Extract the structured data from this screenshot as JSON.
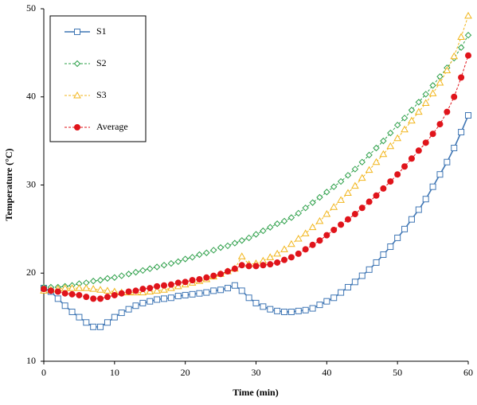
{
  "chart_data": {
    "type": "line",
    "x_label": "Time (min)",
    "y_label": "Temperature  (°C)",
    "x": [
      0,
      1,
      2,
      3,
      4,
      5,
      6,
      7,
      8,
      9,
      10,
      11,
      12,
      13,
      14,
      15,
      16,
      17,
      18,
      19,
      20,
      21,
      22,
      23,
      24,
      25,
      26,
      27,
      28,
      29,
      30,
      31,
      32,
      33,
      34,
      35,
      36,
      37,
      38,
      39,
      40,
      41,
      42,
      43,
      44,
      45,
      46,
      47,
      48,
      49,
      50,
      51,
      52,
      53,
      54,
      55,
      56,
      57,
      58,
      59,
      60
    ],
    "xlim": [
      0,
      60
    ],
    "xticks": [
      0,
      10,
      20,
      30,
      40,
      50,
      60
    ],
    "ylim": [
      10,
      50
    ],
    "yticks": [
      10,
      20,
      30,
      40,
      50
    ],
    "legend": "upper left",
    "series": [
      {
        "name": "S1",
        "color": "#3f76b4",
        "marker": "square",
        "dashed": false,
        "values": [
          18.3,
          17.9,
          17.1,
          16.3,
          15.6,
          15.0,
          14.4,
          13.9,
          13.9,
          14.4,
          15.0,
          15.5,
          15.9,
          16.3,
          16.6,
          16.8,
          17.0,
          17.1,
          17.2,
          17.4,
          17.5,
          17.6,
          17.7,
          17.8,
          18.0,
          18.1,
          18.3,
          18.6,
          18.0,
          17.2,
          16.6,
          16.2,
          15.9,
          15.7,
          15.6,
          15.6,
          15.7,
          15.8,
          16.0,
          16.4,
          16.8,
          17.2,
          17.8,
          18.4,
          19.0,
          19.7,
          20.4,
          21.2,
          22.1,
          23.0,
          24.0,
          25.0,
          26.1,
          27.2,
          28.4,
          29.8,
          31.2,
          32.6,
          34.2,
          36.0,
          37.9
        ]
      },
      {
        "name": "S2",
        "color": "#2ea04a",
        "marker": "diamond",
        "dashed": true,
        "values": [
          18.4,
          18.4,
          18.4,
          18.5,
          18.6,
          18.8,
          18.9,
          19.1,
          19.2,
          19.4,
          19.5,
          19.7,
          19.9,
          20.1,
          20.3,
          20.5,
          20.7,
          20.9,
          21.1,
          21.3,
          21.6,
          21.8,
          22.1,
          22.3,
          22.6,
          22.9,
          23.1,
          23.4,
          23.7,
          24.0,
          24.4,
          24.8,
          25.2,
          25.6,
          25.9,
          26.3,
          26.8,
          27.4,
          28.0,
          28.6,
          29.2,
          29.8,
          30.4,
          31.1,
          31.8,
          32.6,
          33.4,
          34.2,
          35.0,
          35.9,
          36.8,
          37.6,
          38.5,
          39.4,
          40.3,
          41.3,
          42.3,
          43.3,
          44.4,
          45.6,
          47.0
        ]
      },
      {
        "name": "S3",
        "color": "#f2b61c",
        "marker": "triangle",
        "dashed": true,
        "values": [
          18.0,
          18.1,
          18.2,
          18.3,
          18.3,
          18.3,
          18.3,
          18.2,
          18.1,
          18.0,
          17.9,
          17.8,
          17.8,
          17.8,
          17.8,
          17.9,
          18.0,
          18.1,
          18.3,
          18.5,
          18.7,
          18.9,
          19.1,
          19.3,
          19.6,
          19.9,
          20.2,
          20.5,
          21.9,
          21.0,
          21.1,
          21.4,
          21.8,
          22.2,
          22.7,
          23.3,
          23.9,
          24.5,
          25.2,
          25.9,
          26.7,
          27.5,
          28.3,
          29.1,
          29.9,
          30.8,
          31.7,
          32.6,
          33.5,
          34.4,
          35.3,
          36.3,
          37.3,
          38.3,
          39.3,
          40.4,
          41.6,
          43.0,
          44.6,
          46.8,
          49.2
        ]
      },
      {
        "name": "Average",
        "color": "#e0141b",
        "marker": "circle",
        "dashed": true,
        "values": [
          18.2,
          18.0,
          17.9,
          17.7,
          17.6,
          17.5,
          17.3,
          17.1,
          17.1,
          17.3,
          17.5,
          17.7,
          17.9,
          18.0,
          18.2,
          18.3,
          18.5,
          18.6,
          18.7,
          18.9,
          19.0,
          19.2,
          19.3,
          19.5,
          19.7,
          19.9,
          20.2,
          20.5,
          20.9,
          20.8,
          20.8,
          20.9,
          21.0,
          21.2,
          21.5,
          21.8,
          22.2,
          22.7,
          23.2,
          23.7,
          24.3,
          24.9,
          25.5,
          26.1,
          26.7,
          27.4,
          28.1,
          28.8,
          29.6,
          30.4,
          31.2,
          32.1,
          33.0,
          33.9,
          34.8,
          35.8,
          36.9,
          38.3,
          40.0,
          42.2,
          44.7
        ]
      }
    ]
  }
}
